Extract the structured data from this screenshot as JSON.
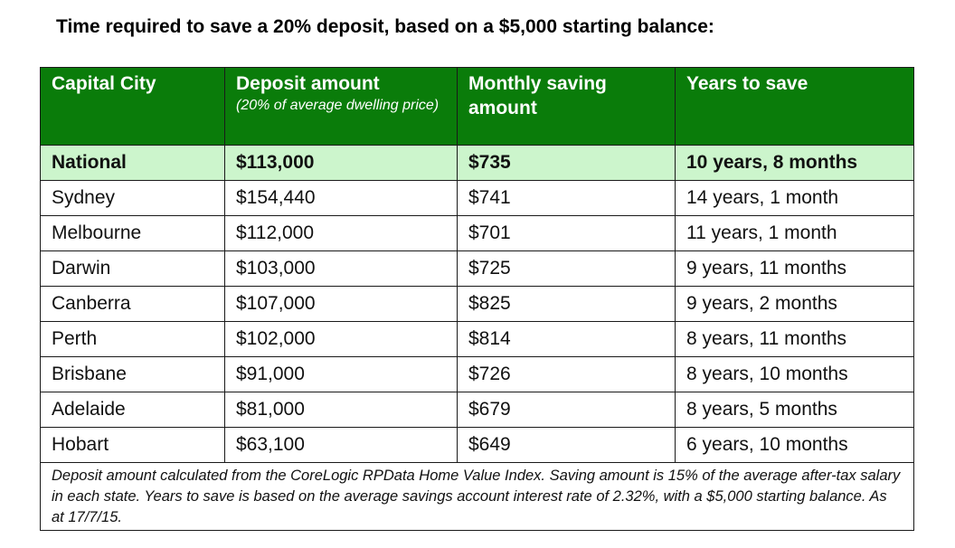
{
  "title": "Time required to save a 20% deposit, based on a $5,000 starting balance:",
  "table": {
    "headers": {
      "capital_city": "Capital City",
      "deposit_amount": "Deposit amount",
      "deposit_amount_note": "(20% of average dwelling price)",
      "monthly_saving": "Monthly saving amount",
      "years_to_save": "Years to save"
    },
    "national": {
      "city": "National",
      "deposit": "$113,000",
      "monthly": "$735",
      "years": "10 years, 8 months"
    },
    "rows": [
      {
        "city": "Sydney",
        "deposit": "$154,440",
        "monthly": "$741",
        "years": "14 years, 1 month"
      },
      {
        "city": "Melbourne",
        "deposit": "$112,000",
        "monthly": "$701",
        "years": "11 years, 1 month"
      },
      {
        "city": "Darwin",
        "deposit": "$103,000",
        "monthly": "$725",
        "years": "9 years, 11 months"
      },
      {
        "city": "Canberra",
        "deposit": "$107,000",
        "monthly": "$825",
        "years": "9 years, 2 months"
      },
      {
        "city": "Perth",
        "deposit": "$102,000",
        "monthly": "$814",
        "years": "8 years, 11 months"
      },
      {
        "city": "Brisbane",
        "deposit": "$91,000",
        "monthly": "$726",
        "years": "8 years, 10 months"
      },
      {
        "city": "Adelaide",
        "deposit": "$81,000",
        "monthly": "$679",
        "years": "8 years, 5 months"
      },
      {
        "city": "Hobart",
        "deposit": "$63,100",
        "monthly": "$649",
        "years": "6 years, 10 months"
      }
    ],
    "footnote": "Deposit amount calculated from the CoreLogic RPData Home Value Index. Saving amount is 15% of the average after-tax salary in each state. Years to save is based on the average savings account interest rate of 2.32%, with a $5,000 starting balance. As at 17/7/15."
  },
  "colors": {
    "header_bg": "#0a7c0a",
    "header_text": "#ffffff",
    "national_bg": "#ccf5cc",
    "border": "#1a1a1a"
  }
}
